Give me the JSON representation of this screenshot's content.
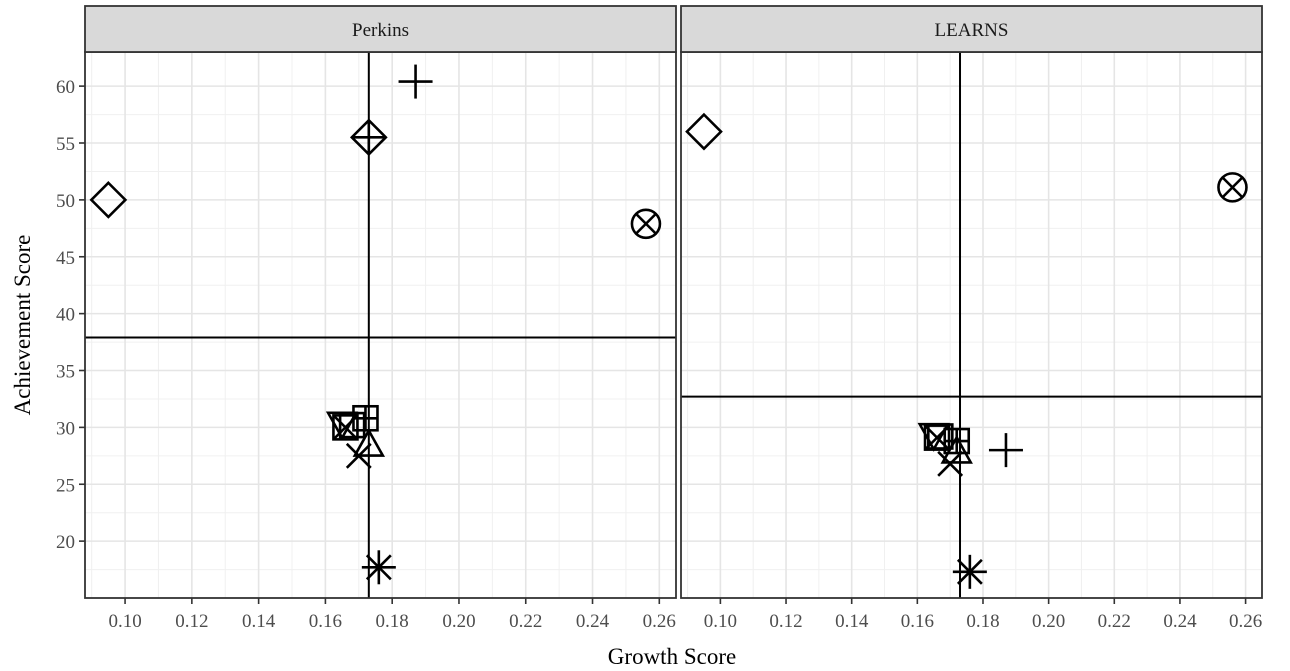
{
  "chart_data": {
    "type": "scatter",
    "xlabel": "Growth Score",
    "ylabel": "Achievement Score",
    "xlim": [
      0.088,
      0.265
    ],
    "ylim": [
      15.0,
      63.0
    ],
    "x_ticks": [
      0.1,
      0.12,
      0.14,
      0.16,
      0.18,
      0.2,
      0.22,
      0.24,
      0.26
    ],
    "x_tick_labels": [
      "0.10",
      "0.12",
      "0.14",
      "0.16",
      "0.18",
      "0.20",
      "0.22",
      "0.24",
      "0.26"
    ],
    "y_ticks": [
      20,
      25,
      30,
      35,
      40,
      45,
      50,
      55,
      60
    ],
    "y_tick_labels": [
      "20",
      "25",
      "30",
      "35",
      "40",
      "45",
      "50",
      "55",
      "60"
    ],
    "grid": true,
    "panels": [
      {
        "title": "Perkins",
        "vline": 0.173,
        "hline": 37.9,
        "points": [
          {
            "shape": "diamond",
            "x": 0.095,
            "y": 50.0
          },
          {
            "shape": "diamond-plus",
            "x": 0.173,
            "y": 55.5
          },
          {
            "shape": "plus",
            "x": 0.187,
            "y": 60.4
          },
          {
            "shape": "circle-x",
            "x": 0.256,
            "y": 47.9
          },
          {
            "shape": "triangle-down",
            "x": 0.165,
            "y": 30.4
          },
          {
            "shape": "square-x",
            "x": 0.166,
            "y": 30.0
          },
          {
            "shape": "square",
            "x": 0.168,
            "y": 30.2
          },
          {
            "shape": "square-plus",
            "x": 0.172,
            "y": 30.8
          },
          {
            "shape": "triangle",
            "x": 0.173,
            "y": 28.4
          },
          {
            "shape": "x",
            "x": 0.17,
            "y": 27.5
          },
          {
            "shape": "asterisk",
            "x": 0.176,
            "y": 17.7
          }
        ]
      },
      {
        "title": "LEARNS",
        "vline": 0.173,
        "hline": 32.7,
        "points": [
          {
            "shape": "diamond",
            "x": 0.095,
            "y": 56.0
          },
          {
            "shape": "circle-x",
            "x": 0.256,
            "y": 51.1
          },
          {
            "shape": "plus",
            "x": 0.187,
            "y": 28.0
          },
          {
            "shape": "triangle-down",
            "x": 0.165,
            "y": 29.4
          },
          {
            "shape": "square-x",
            "x": 0.166,
            "y": 29.1
          },
          {
            "shape": "square",
            "x": 0.167,
            "y": 29.2
          },
          {
            "shape": "square-plus",
            "x": 0.172,
            "y": 28.8
          },
          {
            "shape": "triangle",
            "x": 0.172,
            "y": 27.8
          },
          {
            "shape": "x",
            "x": 0.17,
            "y": 26.8
          },
          {
            "shape": "asterisk",
            "x": 0.176,
            "y": 17.3
          }
        ]
      }
    ]
  }
}
